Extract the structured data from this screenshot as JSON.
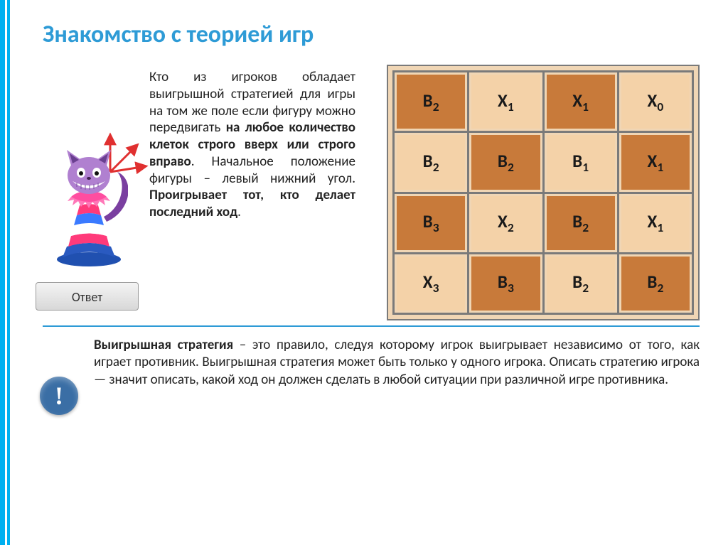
{
  "title": "Знакомство с теорией игр",
  "description_html": "Кто из игроков обладает выигрышной стратегией для игры на том же поле если фигуру можно передвигать <b>на любое количество кле­ток строго вверх или строго вправо</b>. Началь­ное положение фигуры – левый нижний угол. <b>Проигрывает тот, кто делает последний ход</b>.",
  "answer_button": "Ответ",
  "info_badge": "!",
  "definition_html": "<b>Выигрышная стратегия</b> – это правило, следуя которому игрок выигрывает независимо от того, как играет противник. Выигрышная стратегия может быть только у одного игрока. Описать стратегию игрока — значит описать, какой ход он должен сделать в любой ситуации при различной игре противника.",
  "grid": {
    "rows": 4,
    "cols": 4,
    "colors": {
      "dark": "#c87a3a",
      "light": "#f4d2a8",
      "border": "#7a7a7a",
      "outer_bg": "#f0d6b5"
    },
    "cells": [
      [
        {
          "t": "В",
          "s": "2",
          "c": "dark"
        },
        {
          "t": "Х",
          "s": "1",
          "c": "light"
        },
        {
          "t": "Х",
          "s": "1",
          "c": "dark"
        },
        {
          "t": "Х",
          "s": "0",
          "c": "light"
        }
      ],
      [
        {
          "t": "В",
          "s": "2",
          "c": "light"
        },
        {
          "t": "В",
          "s": "2",
          "c": "dark"
        },
        {
          "t": "В",
          "s": "1",
          "c": "light"
        },
        {
          "t": "Х",
          "s": "1",
          "c": "dark"
        }
      ],
      [
        {
          "t": "В",
          "s": "3",
          "c": "dark"
        },
        {
          "t": "Х",
          "s": "2",
          "c": "light"
        },
        {
          "t": "В",
          "s": "2",
          "c": "dark"
        },
        {
          "t": "Х",
          "s": "1",
          "c": "light"
        }
      ],
      [
        {
          "t": "Х",
          "s": "3",
          "c": "light"
        },
        {
          "t": "В",
          "s": "3",
          "c": "dark"
        },
        {
          "t": "В",
          "s": "2",
          "c": "light"
        },
        {
          "t": "В",
          "s": "2",
          "c": "dark"
        }
      ]
    ]
  },
  "piece": {
    "name": "cheshire-cat-pawn",
    "arrow_color": "#e03030",
    "body_stripes": [
      "#ff3a7a",
      "#ffffff",
      "#3a7aff"
    ],
    "face_color": "#b080d0"
  },
  "style": {
    "accent": "#2e9bd6",
    "title_fontsize": 34,
    "body_fontsize": 19
  }
}
